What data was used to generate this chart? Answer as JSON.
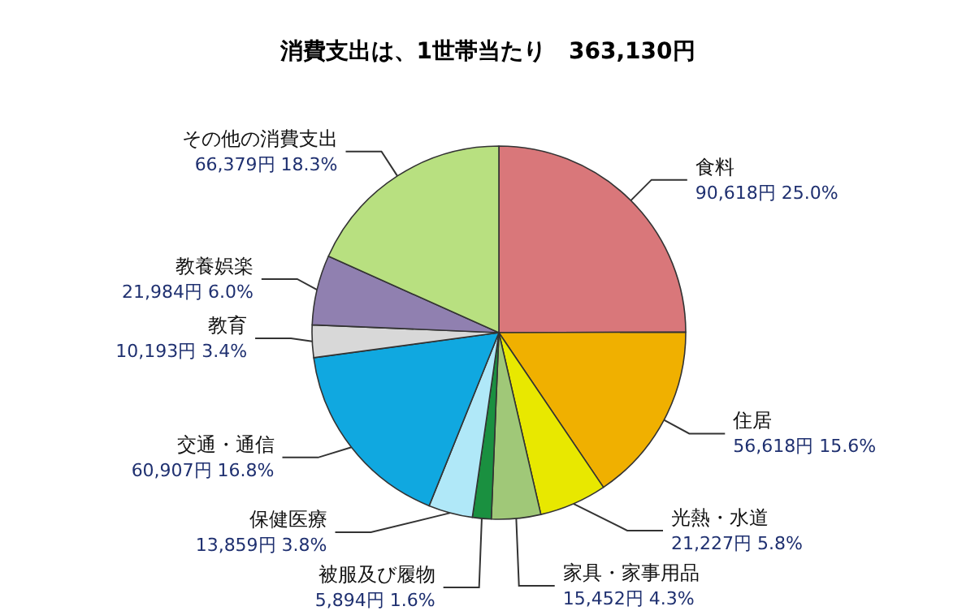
{
  "chart_data": {
    "type": "pie",
    "title": "消費支出は、1世帯当たり　363,130円",
    "categories": [
      "食料",
      "住居",
      "光熱・水道",
      "家具・家事用品",
      "被服及び履物",
      "保健医療",
      "交通・通信",
      "教育",
      "教養娯楽",
      "その他の消費支出"
    ],
    "values": [
      90618,
      56618,
      21227,
      15452,
      5894,
      13859,
      60907,
      10193,
      21984,
      66379
    ],
    "value_labels": [
      "90,618円 25.0%",
      "56,618円 15.6%",
      "21,227円 5.8%",
      "15,452円 4.3%",
      "5,894円 1.6%",
      "13,859円 3.8%",
      "60,907円 16.8%",
      "10,193円 3.4%",
      "21,984円 6.0%",
      "66,379円 18.3%"
    ],
    "colors": [
      "#d9777a",
      "#f0b000",
      "#e8e800",
      "#a0c878",
      "#1a9040",
      "#b0e8f8",
      "#10a8e0",
      "#d8d8d8",
      "#9080b0",
      "#b8e080"
    ],
    "legend": false
  }
}
